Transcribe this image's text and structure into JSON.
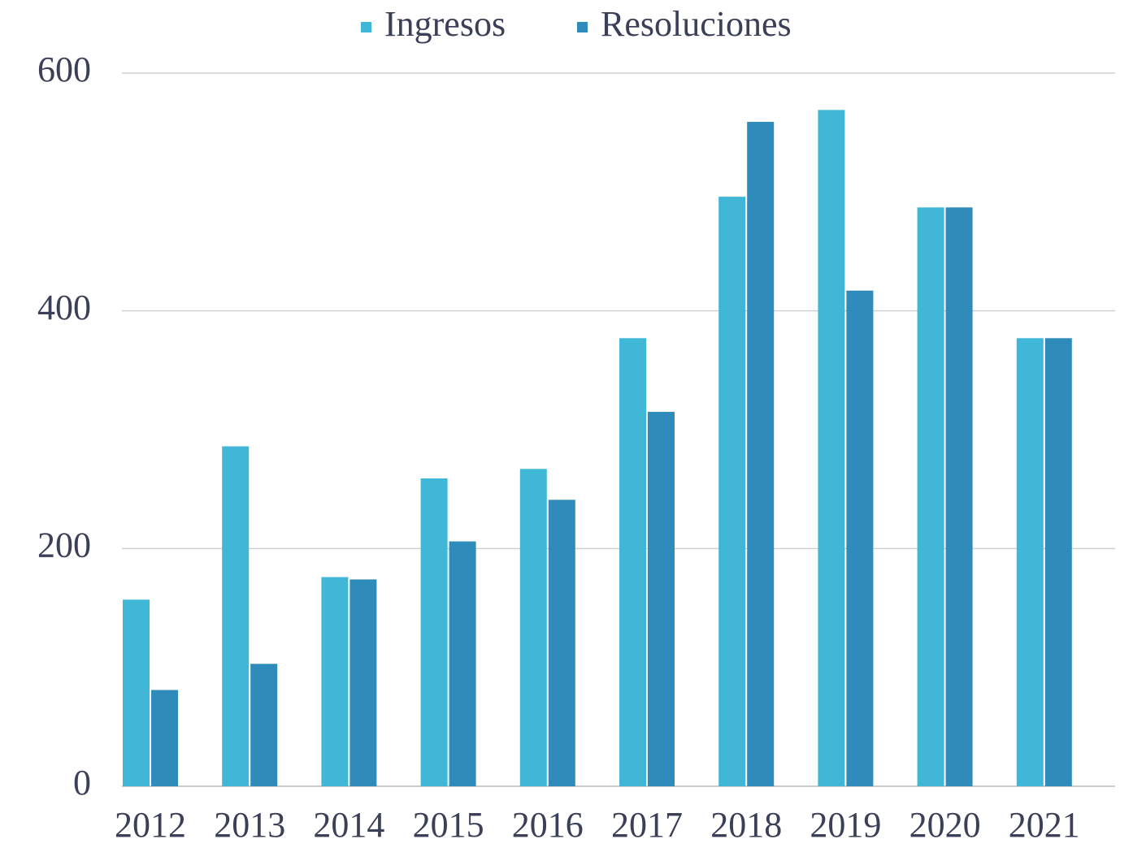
{
  "chart_data": {
    "type": "bar",
    "categories": [
      "2012",
      "2013",
      "2014",
      "2015",
      "2016",
      "2017",
      "2018",
      "2019",
      "2020",
      "2021"
    ],
    "series": [
      {
        "name": "Ingresos",
        "color": "#41b7d7",
        "values": [
          157,
          286,
          176,
          259,
          267,
          377,
          496,
          569,
          487,
          377
        ]
      },
      {
        "name": "Resoluciones",
        "color": "#2e8bba",
        "values": [
          81,
          103,
          174,
          206,
          241,
          315,
          559,
          417,
          487,
          377
        ]
      }
    ],
    "ylim": [
      0,
      600
    ],
    "yticks": [
      0,
      200,
      400,
      600
    ],
    "grid": true,
    "legend": "top"
  }
}
